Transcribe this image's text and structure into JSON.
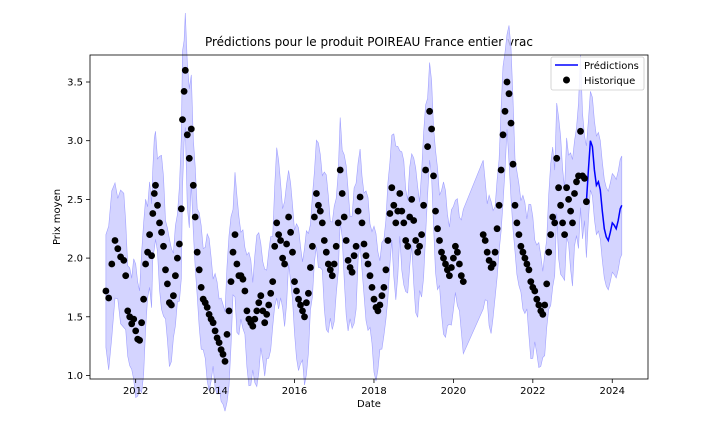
{
  "chart_data": {
    "type": "line",
    "title": "Prédictions pour le produit POIREAU France entier vrac",
    "xlabel": "Date",
    "ylabel": "Prix moyen",
    "xlim": [
      2010.85,
      2024.9
    ],
    "ylim": [
      0.97,
      3.73
    ],
    "x_ticks": [
      "2012",
      "2014",
      "2016",
      "2018",
      "2020",
      "2022",
      "2024"
    ],
    "y_ticks": [
      "1.0",
      "1.5",
      "2.0",
      "2.5",
      "3.0",
      "3.5"
    ],
    "grid": false,
    "legend_position": "top-right",
    "legend": [
      {
        "label": "Prédictions",
        "kind": "line",
        "color": "#0000ff"
      },
      {
        "label": "Historique",
        "kind": "marker",
        "color": "#000000"
      }
    ],
    "colors": {
      "prediction": "#0000ff",
      "band": "#ccccff",
      "band_edge": "#a0a0ff",
      "history": "#000000"
    },
    "series": [
      {
        "name": "Historique",
        "type": "scatter",
        "points": [
          [
            2011.25,
            1.72
          ],
          [
            2011.32,
            1.66
          ],
          [
            2011.4,
            1.95
          ],
          [
            2011.48,
            2.15
          ],
          [
            2011.55,
            2.08
          ],
          [
            2011.62,
            2.01
          ],
          [
            2011.7,
            1.98
          ],
          [
            2011.75,
            1.85
          ],
          [
            2011.8,
            1.55
          ],
          [
            2011.85,
            1.5
          ],
          [
            2011.9,
            1.44
          ],
          [
            2011.95,
            1.48
          ],
          [
            2012.0,
            1.38
          ],
          [
            2012.05,
            1.31
          ],
          [
            2012.1,
            1.3
          ],
          [
            2012.15,
            1.45
          ],
          [
            2012.2,
            1.65
          ],
          [
            2012.25,
            1.95
          ],
          [
            2012.3,
            2.05
          ],
          [
            2012.35,
            2.2
          ],
          [
            2012.4,
            2.02
          ],
          [
            2012.43,
            2.38
          ],
          [
            2012.47,
            2.55
          ],
          [
            2012.5,
            2.62
          ],
          [
            2012.55,
            2.45
          ],
          [
            2012.6,
            2.3
          ],
          [
            2012.65,
            2.22
          ],
          [
            2012.7,
            2.1
          ],
          [
            2012.75,
            1.9
          ],
          [
            2012.8,
            1.78
          ],
          [
            2012.85,
            1.62
          ],
          [
            2012.9,
            1.6
          ],
          [
            2012.95,
            1.68
          ],
          [
            2013.0,
            1.85
          ],
          [
            2013.05,
            2.0
          ],
          [
            2013.1,
            2.12
          ],
          [
            2013.15,
            2.42
          ],
          [
            2013.18,
            3.18
          ],
          [
            2013.22,
            3.42
          ],
          [
            2013.25,
            3.6
          ],
          [
            2013.3,
            3.05
          ],
          [
            2013.35,
            2.85
          ],
          [
            2013.4,
            3.1
          ],
          [
            2013.45,
            2.62
          ],
          [
            2013.5,
            2.35
          ],
          [
            2013.55,
            2.05
          ],
          [
            2013.6,
            1.9
          ],
          [
            2013.65,
            1.75
          ],
          [
            2013.7,
            1.65
          ],
          [
            2013.75,
            1.62
          ],
          [
            2013.8,
            1.58
          ],
          [
            2013.85,
            1.52
          ],
          [
            2013.9,
            1.48
          ],
          [
            2013.95,
            1.45
          ],
          [
            2014.0,
            1.38
          ],
          [
            2014.05,
            1.32
          ],
          [
            2014.1,
            1.28
          ],
          [
            2014.15,
            1.22
          ],
          [
            2014.2,
            1.18
          ],
          [
            2014.25,
            1.12
          ],
          [
            2014.3,
            1.35
          ],
          [
            2014.35,
            1.55
          ],
          [
            2014.4,
            1.8
          ],
          [
            2014.45,
            2.05
          ],
          [
            2014.5,
            2.2
          ],
          [
            2014.55,
            1.95
          ],
          [
            2014.6,
            1.85
          ],
          [
            2014.65,
            1.85
          ],
          [
            2014.7,
            1.82
          ],
          [
            2014.75,
            1.72
          ],
          [
            2014.8,
            1.55
          ],
          [
            2014.85,
            1.48
          ],
          [
            2014.9,
            1.45
          ],
          [
            2014.95,
            1.42
          ],
          [
            2015.0,
            1.48
          ],
          [
            2015.05,
            1.55
          ],
          [
            2015.1,
            1.62
          ],
          [
            2015.15,
            1.68
          ],
          [
            2015.2,
            1.55
          ],
          [
            2015.25,
            1.45
          ],
          [
            2015.3,
            1.52
          ],
          [
            2015.35,
            1.6
          ],
          [
            2015.4,
            1.7
          ],
          [
            2015.45,
            1.8
          ],
          [
            2015.5,
            2.1
          ],
          [
            2015.55,
            2.3
          ],
          [
            2015.6,
            2.2
          ],
          [
            2015.65,
            2.15
          ],
          [
            2015.7,
            2.0
          ],
          [
            2015.75,
            1.95
          ],
          [
            2015.8,
            2.12
          ],
          [
            2015.85,
            2.35
          ],
          [
            2015.9,
            2.22
          ],
          [
            2015.95,
            2.05
          ],
          [
            2016.0,
            1.8
          ],
          [
            2016.05,
            1.72
          ],
          [
            2016.1,
            1.65
          ],
          [
            2016.15,
            1.6
          ],
          [
            2016.2,
            1.55
          ],
          [
            2016.25,
            1.5
          ],
          [
            2016.3,
            1.62
          ],
          [
            2016.35,
            1.7
          ],
          [
            2016.4,
            1.92
          ],
          [
            2016.45,
            2.1
          ],
          [
            2016.5,
            2.35
          ],
          [
            2016.55,
            2.55
          ],
          [
            2016.6,
            2.45
          ],
          [
            2016.65,
            2.4
          ],
          [
            2016.7,
            2.3
          ],
          [
            2016.75,
            2.15
          ],
          [
            2016.8,
            2.05
          ],
          [
            2016.85,
            1.95
          ],
          [
            2016.9,
            1.9
          ],
          [
            2016.95,
            1.85
          ],
          [
            2017.0,
            1.95
          ],
          [
            2017.05,
            2.1
          ],
          [
            2017.1,
            2.3
          ],
          [
            2017.15,
            2.75
          ],
          [
            2017.2,
            2.55
          ],
          [
            2017.25,
            2.35
          ],
          [
            2017.3,
            2.15
          ],
          [
            2017.35,
            1.98
          ],
          [
            2017.4,
            1.92
          ],
          [
            2017.45,
            1.88
          ],
          [
            2017.5,
            2.02
          ],
          [
            2017.55,
            2.1
          ],
          [
            2017.6,
            2.4
          ],
          [
            2017.65,
            2.52
          ],
          [
            2017.7,
            2.3
          ],
          [
            2017.75,
            2.12
          ],
          [
            2017.8,
            2.02
          ],
          [
            2017.85,
            1.95
          ],
          [
            2017.9,
            1.85
          ],
          [
            2017.95,
            1.75
          ],
          [
            2018.0,
            1.65
          ],
          [
            2018.05,
            1.58
          ],
          [
            2018.1,
            1.55
          ],
          [
            2018.15,
            1.6
          ],
          [
            2018.2,
            1.68
          ],
          [
            2018.25,
            1.75
          ],
          [
            2018.3,
            1.9
          ],
          [
            2018.35,
            2.15
          ],
          [
            2018.4,
            2.38
          ],
          [
            2018.45,
            2.6
          ],
          [
            2018.5,
            2.45
          ],
          [
            2018.55,
            2.3
          ],
          [
            2018.6,
            2.4
          ],
          [
            2018.65,
            2.55
          ],
          [
            2018.7,
            2.4
          ],
          [
            2018.75,
            2.3
          ],
          [
            2018.8,
            2.15
          ],
          [
            2018.85,
            2.1
          ],
          [
            2018.9,
            2.35
          ],
          [
            2018.95,
            2.5
          ],
          [
            2019.0,
            2.32
          ],
          [
            2019.05,
            2.15
          ],
          [
            2019.1,
            2.05
          ],
          [
            2019.15,
            2.1
          ],
          [
            2019.2,
            2.2
          ],
          [
            2019.25,
            2.45
          ],
          [
            2019.3,
            2.75
          ],
          [
            2019.35,
            2.95
          ],
          [
            2019.4,
            3.25
          ],
          [
            2019.45,
            3.1
          ],
          [
            2019.5,
            2.7
          ],
          [
            2019.55,
            2.4
          ],
          [
            2019.6,
            2.25
          ],
          [
            2019.65,
            2.15
          ],
          [
            2019.7,
            2.05
          ],
          [
            2019.75,
            2.0
          ],
          [
            2019.8,
            1.95
          ],
          [
            2019.85,
            1.9
          ],
          [
            2019.9,
            1.85
          ],
          [
            2019.95,
            1.92
          ],
          [
            2020.0,
            2.0
          ],
          [
            2020.05,
            2.1
          ],
          [
            2020.1,
            2.05
          ],
          [
            2020.15,
            1.95
          ],
          [
            2020.2,
            1.85
          ],
          [
            2020.25,
            1.8
          ],
          [
            2020.75,
            2.2
          ],
          [
            2020.8,
            2.15
          ],
          [
            2020.85,
            2.05
          ],
          [
            2020.9,
            1.98
          ],
          [
            2020.95,
            1.92
          ],
          [
            2021.0,
            1.95
          ],
          [
            2021.05,
            2.05
          ],
          [
            2021.1,
            2.25
          ],
          [
            2021.15,
            2.45
          ],
          [
            2021.2,
            2.75
          ],
          [
            2021.25,
            3.05
          ],
          [
            2021.3,
            3.25
          ],
          [
            2021.35,
            3.5
          ],
          [
            2021.4,
            3.4
          ],
          [
            2021.45,
            3.15
          ],
          [
            2021.5,
            2.8
          ],
          [
            2021.55,
            2.45
          ],
          [
            2021.6,
            2.3
          ],
          [
            2021.65,
            2.2
          ],
          [
            2021.7,
            2.1
          ],
          [
            2021.75,
            2.05
          ],
          [
            2021.8,
            2.0
          ],
          [
            2021.85,
            1.95
          ],
          [
            2021.9,
            1.9
          ],
          [
            2021.95,
            1.8
          ],
          [
            2022.0,
            1.75
          ],
          [
            2022.05,
            1.72
          ],
          [
            2022.1,
            1.65
          ],
          [
            2022.15,
            1.6
          ],
          [
            2022.2,
            1.55
          ],
          [
            2022.25,
            1.52
          ],
          [
            2022.3,
            1.6
          ],
          [
            2022.35,
            1.78
          ],
          [
            2022.4,
            2.05
          ],
          [
            2022.45,
            2.2
          ],
          [
            2022.5,
            2.35
          ],
          [
            2022.55,
            2.3
          ],
          [
            2022.6,
            2.85
          ],
          [
            2022.65,
            2.6
          ],
          [
            2022.7,
            2.45
          ],
          [
            2022.75,
            2.3
          ],
          [
            2022.8,
            2.2
          ],
          [
            2022.85,
            2.6
          ],
          [
            2022.9,
            2.5
          ],
          [
            2022.95,
            2.4
          ],
          [
            2023.0,
            2.3
          ],
          [
            2023.05,
            2.55
          ],
          [
            2023.1,
            2.65
          ],
          [
            2023.15,
            2.7
          ],
          [
            2023.2,
            3.08
          ],
          [
            2023.25,
            2.7
          ],
          [
            2023.3,
            2.68
          ],
          [
            2023.35,
            2.48
          ]
        ]
      },
      {
        "name": "Prédictions",
        "type": "line",
        "points": [
          [
            2023.35,
            2.48
          ],
          [
            2023.4,
            2.75
          ],
          [
            2023.45,
            3.0
          ],
          [
            2023.5,
            2.95
          ],
          [
            2023.55,
            2.75
          ],
          [
            2023.6,
            2.62
          ],
          [
            2023.65,
            2.65
          ],
          [
            2023.7,
            2.58
          ],
          [
            2023.75,
            2.4
          ],
          [
            2023.8,
            2.25
          ],
          [
            2023.85,
            2.18
          ],
          [
            2023.9,
            2.15
          ],
          [
            2023.95,
            2.22
          ],
          [
            2024.0,
            2.3
          ],
          [
            2024.05,
            2.28
          ],
          [
            2024.1,
            2.25
          ],
          [
            2024.15,
            2.32
          ],
          [
            2024.2,
            2.42
          ],
          [
            2024.24,
            2.45
          ]
        ]
      }
    ]
  }
}
